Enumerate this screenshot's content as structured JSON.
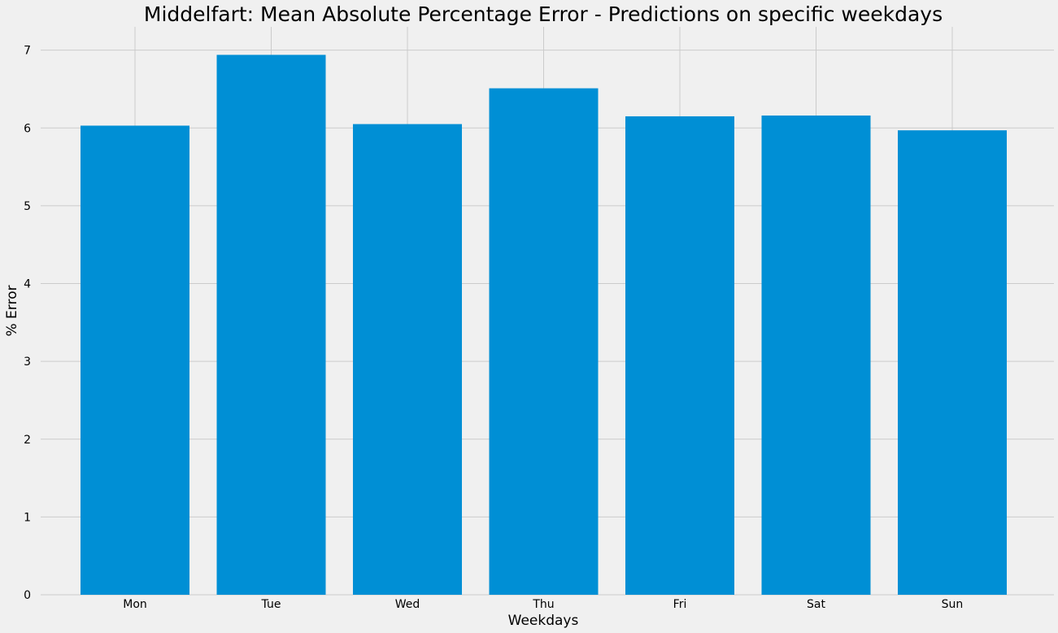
{
  "chart_data": {
    "type": "bar",
    "title": "Middelfart: Mean Absolute Percentage Error - Predictions on specific weekdays",
    "xlabel": "Weekdays",
    "ylabel": "% Error",
    "categories": [
      "Mon",
      "Tue",
      "Wed",
      "Thu",
      "Fri",
      "Sat",
      "Sun"
    ],
    "values": [
      6.03,
      6.94,
      6.05,
      6.51,
      6.15,
      6.16,
      5.97
    ],
    "ylim": [
      0,
      7.3
    ],
    "yticks": [
      "0",
      "1",
      "2",
      "3",
      "4",
      "5",
      "6",
      "7"
    ],
    "grid": true,
    "bar_color": "#008fd5",
    "background_color": "#f0f0f0",
    "grid_color": "#cbcbcb"
  }
}
